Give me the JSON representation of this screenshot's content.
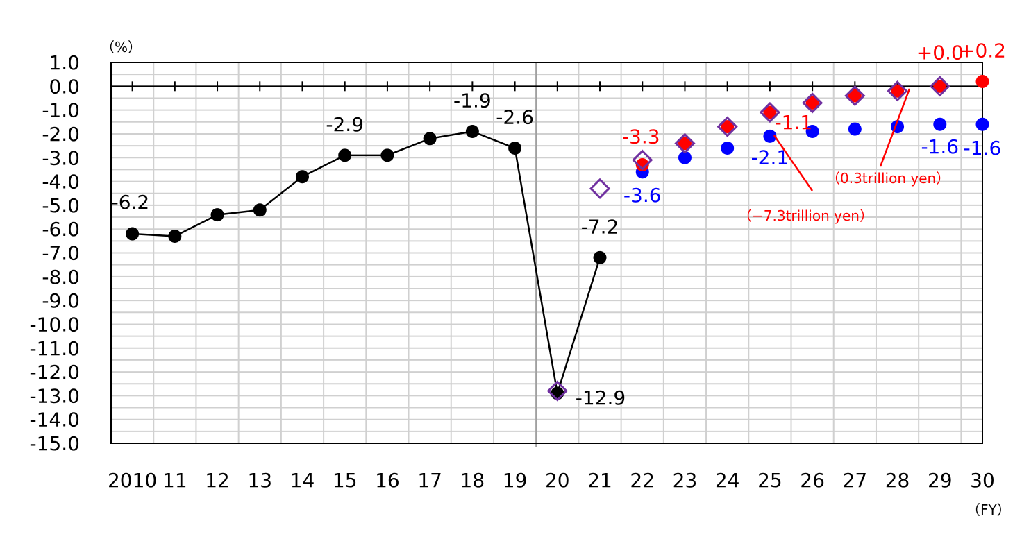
{
  "chart_data": {
    "type": "line",
    "title": "",
    "y_unit_label": "（%）",
    "x_unit_label": "（FY）",
    "ylim": [
      -15,
      1
    ],
    "yticks": [
      "1.0",
      "0.0",
      "-1.0",
      "-2.0",
      "-3.0",
      "-4.0",
      "-5.0",
      "-6.0",
      "-7.0",
      "-8.0",
      "-9.0",
      "-10.0",
      "-11.0",
      "-12.0",
      "-13.0",
      "-14.0",
      "-15.0"
    ],
    "categories": [
      "2010",
      "11",
      "12",
      "13",
      "14",
      "15",
      "16",
      "17",
      "18",
      "19",
      "20",
      "21",
      "22",
      "23",
      "24",
      "25",
      "26",
      "27",
      "28",
      "29",
      "30"
    ],
    "grid": true,
    "series": [
      {
        "name": "",
        "style": "black-line-circle",
        "color": "#000000",
        "values": [
          -6.2,
          -6.3,
          -5.4,
          -5.2,
          -3.8,
          -2.9,
          -2.9,
          -2.2,
          -1.9,
          -2.6,
          -12.9,
          -7.2,
          null,
          null,
          null,
          null,
          null,
          null,
          null,
          null,
          null
        ]
      },
      {
        "name": "",
        "style": "blue-circle",
        "color": "#0000ff",
        "values": [
          null,
          null,
          null,
          null,
          null,
          null,
          null,
          null,
          null,
          null,
          null,
          null,
          -3.6,
          -3.0,
          -2.6,
          -2.1,
          -1.9,
          -1.8,
          -1.7,
          -1.6,
          -1.6
        ]
      },
      {
        "name": "",
        "style": "red-circle",
        "color": "#ff0000",
        "values": [
          null,
          null,
          null,
          null,
          null,
          null,
          null,
          null,
          null,
          null,
          null,
          null,
          -3.3,
          -2.4,
          -1.7,
          -1.1,
          -0.7,
          -0.4,
          -0.2,
          0.0,
          0.2
        ]
      },
      {
        "name": "",
        "style": "purple-hollow-diamond",
        "color": "#7030a0",
        "values": [
          null,
          null,
          null,
          null,
          null,
          null,
          null,
          null,
          null,
          null,
          -12.8,
          -4.3,
          -3.1,
          -2.4,
          -1.7,
          -1.1,
          -0.7,
          -0.4,
          -0.2,
          0.0,
          null
        ]
      }
    ],
    "data_labels": [
      {
        "text": "-6.2",
        "color": "#000000"
      },
      {
        "text": "-2.9",
        "color": "#000000"
      },
      {
        "text": "-1.9",
        "color": "#000000"
      },
      {
        "text": "-2.6",
        "color": "#000000"
      },
      {
        "text": "-7.2",
        "color": "#000000"
      },
      {
        "text": "-12.9",
        "color": "#000000"
      },
      {
        "text": "-3.3",
        "color": "#ff0000"
      },
      {
        "text": "-3.6",
        "color": "#0000ff"
      },
      {
        "text": "-2.1",
        "color": "#0000ff"
      },
      {
        "text": "-1.1",
        "color": "#ff0000"
      },
      {
        "text": "-1.6",
        "color": "#0000ff"
      },
      {
        "text": "-1.6",
        "color": "#0000ff"
      },
      {
        "text": "+0.0",
        "color": "#ff0000"
      },
      {
        "text": "+0.2",
        "color": "#ff0000"
      }
    ],
    "annotations": [
      {
        "text": "（−7.3trillion yen）",
        "color": "#ff0000"
      },
      {
        "text": "（0.3trillion yen）",
        "color": "#ff0000"
      }
    ],
    "divider_between": [
      "19",
      "20"
    ]
  }
}
